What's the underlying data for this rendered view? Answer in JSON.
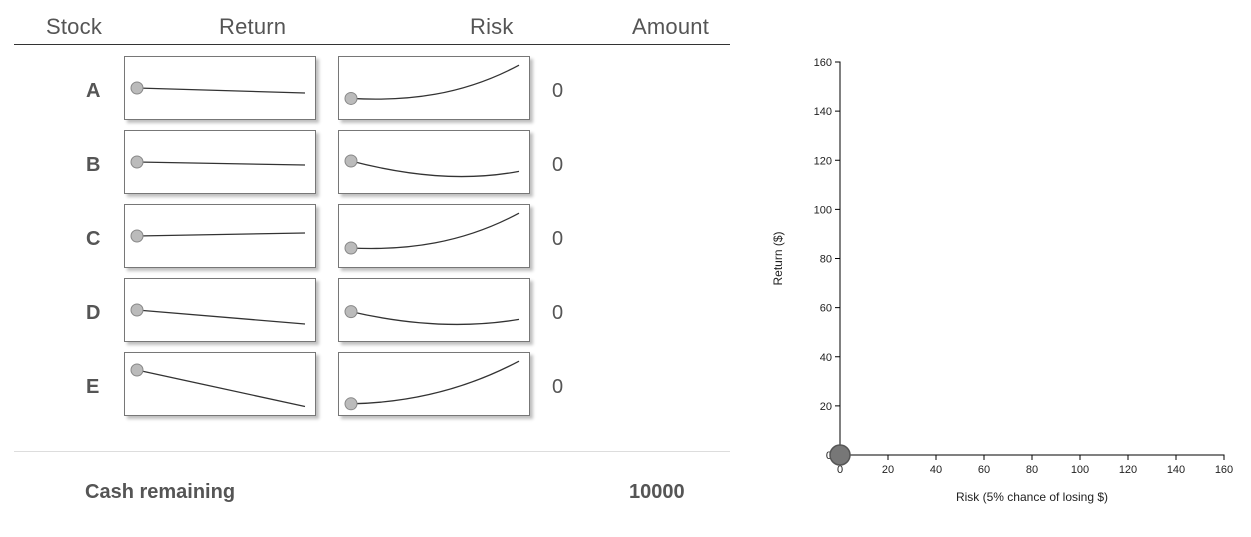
{
  "headers": {
    "stock": "Stock",
    "return": "Return",
    "risk": "Risk",
    "amount": "Amount"
  },
  "stocks": [
    {
      "name": "A",
      "amount": "0",
      "return_trend": [
        0.5,
        0.6
      ],
      "risk_trend": [
        0.28,
        0.22,
        0.34,
        0.92
      ]
    },
    {
      "name": "B",
      "amount": "0",
      "return_trend": [
        0.5,
        0.56
      ],
      "risk_trend": [
        0.5,
        0.22,
        0.1,
        0.3
      ]
    },
    {
      "name": "C",
      "amount": "0",
      "return_trend": [
        0.5,
        0.44
      ],
      "risk_trend": [
        0.25,
        0.2,
        0.34,
        0.92
      ]
    },
    {
      "name": "D",
      "amount": "0",
      "return_trend": [
        0.5,
        0.78
      ],
      "risk_trend": [
        0.45,
        0.2,
        0.12,
        0.3
      ]
    },
    {
      "name": "E",
      "amount": "0",
      "return_trend": [
        0.22,
        0.95
      ],
      "risk_trend": [
        0.1,
        0.12,
        0.35,
        0.92
      ]
    }
  ],
  "cash": {
    "label": "Cash remaining",
    "value": "10000"
  },
  "chart_data": {
    "type": "scatter",
    "xlabel": "Risk (5% chance of losing $)",
    "ylabel": "Return ($)",
    "xlim": [
      0,
      160
    ],
    "ylim": [
      0,
      160
    ],
    "xticks": [
      0,
      20,
      40,
      60,
      80,
      100,
      120,
      140,
      160
    ],
    "yticks": [
      0,
      20,
      40,
      60,
      80,
      100,
      120,
      140,
      160
    ],
    "points": [
      {
        "x": 0,
        "y": 0
      }
    ],
    "point_color": "#777777",
    "grid": false
  },
  "colors": {
    "marker_fill": "#bbbbbb",
    "marker_stroke": "#888888",
    "line": "#333333"
  }
}
